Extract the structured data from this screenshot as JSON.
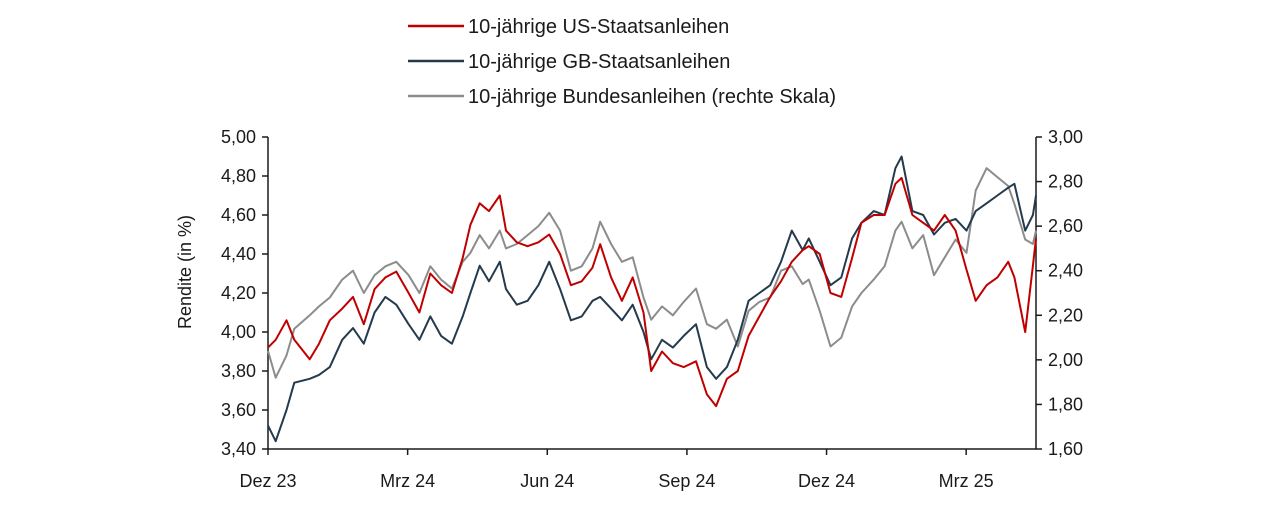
{
  "chart_data": {
    "type": "line",
    "title": "",
    "xlabel": "",
    "ylabel": "Rendite (in %)",
    "ylim": [
      3.4,
      5.0
    ],
    "y2lim": [
      1.6,
      3.0
    ],
    "yticks": [
      "5,00",
      "4,80",
      "4,60",
      "4,40",
      "4,20",
      "4,00",
      "3,80",
      "3,60",
      "3,40"
    ],
    "y2ticks": [
      "3,00",
      "2,80",
      "2,60",
      "2,40",
      "2,20",
      "2,00",
      "1,80",
      "1,60"
    ],
    "xticks": [
      "Dez 23",
      "Mrz 24",
      "Jun 24",
      "Sep 24",
      "Dez 24",
      "Mrz 25"
    ],
    "x_range": [
      "2023-12-01",
      "2025-04-11"
    ],
    "legend_position": "top-center",
    "series": [
      {
        "name": "10-jährige US-Staatsanleihen",
        "color": "#c00000",
        "axis": "left",
        "points": [
          [
            "2023-12-01",
            3.92
          ],
          [
            "2023-12-06",
            3.96
          ],
          [
            "2023-12-13",
            4.06
          ],
          [
            "2023-12-18",
            3.96
          ],
          [
            "2023-12-28",
            3.86
          ],
          [
            "2024-01-03",
            3.94
          ],
          [
            "2024-01-10",
            4.06
          ],
          [
            "2024-01-18",
            4.12
          ],
          [
            "2024-01-25",
            4.18
          ],
          [
            "2024-02-01",
            4.04
          ],
          [
            "2024-02-08",
            4.22
          ],
          [
            "2024-02-15",
            4.28
          ],
          [
            "2024-02-22",
            4.31
          ],
          [
            "2024-03-01",
            4.2
          ],
          [
            "2024-03-08",
            4.1
          ],
          [
            "2024-03-15",
            4.3
          ],
          [
            "2024-03-22",
            4.24
          ],
          [
            "2024-03-29",
            4.2
          ],
          [
            "2024-04-05",
            4.38
          ],
          [
            "2024-04-10",
            4.55
          ],
          [
            "2024-04-16",
            4.66
          ],
          [
            "2024-04-22",
            4.62
          ],
          [
            "2024-04-29",
            4.7
          ],
          [
            "2024-05-03",
            4.52
          ],
          [
            "2024-05-10",
            4.46
          ],
          [
            "2024-05-17",
            4.44
          ],
          [
            "2024-05-24",
            4.46
          ],
          [
            "2024-05-31",
            4.5
          ],
          [
            "2024-06-07",
            4.4
          ],
          [
            "2024-06-14",
            4.24
          ],
          [
            "2024-06-21",
            4.26
          ],
          [
            "2024-06-28",
            4.33
          ],
          [
            "2024-07-03",
            4.45
          ],
          [
            "2024-07-10",
            4.28
          ],
          [
            "2024-07-17",
            4.16
          ],
          [
            "2024-07-24",
            4.28
          ],
          [
            "2024-07-31",
            4.1
          ],
          [
            "2024-08-05",
            3.8
          ],
          [
            "2024-08-12",
            3.9
          ],
          [
            "2024-08-19",
            3.84
          ],
          [
            "2024-08-26",
            3.82
          ],
          [
            "2024-09-03",
            3.85
          ],
          [
            "2024-09-10",
            3.68
          ],
          [
            "2024-09-16",
            3.62
          ],
          [
            "2024-09-23",
            3.76
          ],
          [
            "2024-09-30",
            3.8
          ],
          [
            "2024-10-07",
            3.98
          ],
          [
            "2024-10-14",
            4.08
          ],
          [
            "2024-10-21",
            4.18
          ],
          [
            "2024-10-28",
            4.26
          ],
          [
            "2024-11-04",
            4.36
          ],
          [
            "2024-11-11",
            4.42
          ],
          [
            "2024-11-15",
            4.44
          ],
          [
            "2024-11-22",
            4.4
          ],
          [
            "2024-11-29",
            4.2
          ],
          [
            "2024-12-06",
            4.18
          ],
          [
            "2024-12-13",
            4.38
          ],
          [
            "2024-12-19",
            4.56
          ],
          [
            "2024-12-27",
            4.6
          ],
          [
            "2025-01-03",
            4.6
          ],
          [
            "2025-01-10",
            4.76
          ],
          [
            "2025-01-14",
            4.79
          ],
          [
            "2025-01-21",
            4.6
          ],
          [
            "2025-01-28",
            4.56
          ],
          [
            "2025-02-04",
            4.52
          ],
          [
            "2025-02-11",
            4.6
          ],
          [
            "2025-02-18",
            4.52
          ],
          [
            "2025-02-25",
            4.32
          ],
          [
            "2025-03-03",
            4.16
          ],
          [
            "2025-03-10",
            4.24
          ],
          [
            "2025-03-17",
            4.28
          ],
          [
            "2025-03-24",
            4.36
          ],
          [
            "2025-03-28",
            4.28
          ],
          [
            "2025-04-04",
            4.0
          ],
          [
            "2025-04-09",
            4.34
          ],
          [
            "2025-04-11",
            4.48
          ]
        ]
      },
      {
        "name": "10-jährige GB-Staatsanleihen",
        "color": "#243a4d",
        "axis": "left",
        "points": [
          [
            "2023-12-01",
            3.52
          ],
          [
            "2023-12-06",
            3.44
          ],
          [
            "2023-12-13",
            3.6
          ],
          [
            "2023-12-18",
            3.74
          ],
          [
            "2023-12-28",
            3.76
          ],
          [
            "2024-01-03",
            3.78
          ],
          [
            "2024-01-10",
            3.82
          ],
          [
            "2024-01-18",
            3.96
          ],
          [
            "2024-01-25",
            4.02
          ],
          [
            "2024-02-01",
            3.94
          ],
          [
            "2024-02-08",
            4.1
          ],
          [
            "2024-02-15",
            4.18
          ],
          [
            "2024-02-22",
            4.14
          ],
          [
            "2024-03-01",
            4.04
          ],
          [
            "2024-03-08",
            3.96
          ],
          [
            "2024-03-15",
            4.08
          ],
          [
            "2024-03-22",
            3.98
          ],
          [
            "2024-03-29",
            3.94
          ],
          [
            "2024-04-05",
            4.08
          ],
          [
            "2024-04-10",
            4.2
          ],
          [
            "2024-04-16",
            4.34
          ],
          [
            "2024-04-22",
            4.26
          ],
          [
            "2024-04-29",
            4.36
          ],
          [
            "2024-05-03",
            4.22
          ],
          [
            "2024-05-10",
            4.14
          ],
          [
            "2024-05-17",
            4.16
          ],
          [
            "2024-05-24",
            4.24
          ],
          [
            "2024-05-31",
            4.36
          ],
          [
            "2024-06-07",
            4.22
          ],
          [
            "2024-06-14",
            4.06
          ],
          [
            "2024-06-21",
            4.08
          ],
          [
            "2024-06-28",
            4.16
          ],
          [
            "2024-07-03",
            4.18
          ],
          [
            "2024-07-10",
            4.12
          ],
          [
            "2024-07-17",
            4.06
          ],
          [
            "2024-07-24",
            4.14
          ],
          [
            "2024-07-31",
            4.0
          ],
          [
            "2024-08-05",
            3.86
          ],
          [
            "2024-08-12",
            3.96
          ],
          [
            "2024-08-19",
            3.92
          ],
          [
            "2024-08-26",
            3.98
          ],
          [
            "2024-09-03",
            4.04
          ],
          [
            "2024-09-10",
            3.82
          ],
          [
            "2024-09-16",
            3.76
          ],
          [
            "2024-09-23",
            3.82
          ],
          [
            "2024-09-30",
            3.96
          ],
          [
            "2024-10-07",
            4.16
          ],
          [
            "2024-10-14",
            4.2
          ],
          [
            "2024-10-21",
            4.24
          ],
          [
            "2024-10-28",
            4.36
          ],
          [
            "2024-11-04",
            4.52
          ],
          [
            "2024-11-11",
            4.42
          ],
          [
            "2024-11-15",
            4.48
          ],
          [
            "2024-11-22",
            4.36
          ],
          [
            "2024-11-29",
            4.24
          ],
          [
            "2024-12-06",
            4.28
          ],
          [
            "2024-12-13",
            4.48
          ],
          [
            "2024-12-19",
            4.56
          ],
          [
            "2024-12-27",
            4.62
          ],
          [
            "2025-01-03",
            4.6
          ],
          [
            "2025-01-10",
            4.84
          ],
          [
            "2025-01-14",
            4.9
          ],
          [
            "2025-01-21",
            4.62
          ],
          [
            "2025-01-28",
            4.6
          ],
          [
            "2025-02-04",
            4.5
          ],
          [
            "2025-02-11",
            4.56
          ],
          [
            "2025-02-18",
            4.58
          ],
          [
            "2025-02-25",
            4.52
          ],
          [
            "2025-03-03",
            4.62
          ],
          [
            "2025-03-10",
            4.66
          ],
          [
            "2025-03-17",
            4.7
          ],
          [
            "2025-03-24",
            4.74
          ],
          [
            "2025-03-28",
            4.76
          ],
          [
            "2025-04-04",
            4.52
          ],
          [
            "2025-04-09",
            4.6
          ],
          [
            "2025-04-11",
            4.7
          ]
        ]
      },
      {
        "name": "10-jährige Bundesanleihen (rechte Skala)",
        "color": "#8c8c8c",
        "axis": "right",
        "points": [
          [
            "2023-12-01",
            2.04
          ],
          [
            "2023-12-06",
            1.92
          ],
          [
            "2023-12-13",
            2.02
          ],
          [
            "2023-12-18",
            2.14
          ],
          [
            "2023-12-28",
            2.2
          ],
          [
            "2024-01-03",
            2.24
          ],
          [
            "2024-01-10",
            2.28
          ],
          [
            "2024-01-18",
            2.36
          ],
          [
            "2024-01-25",
            2.4
          ],
          [
            "2024-02-01",
            2.3
          ],
          [
            "2024-02-08",
            2.38
          ],
          [
            "2024-02-15",
            2.42
          ],
          [
            "2024-02-22",
            2.44
          ],
          [
            "2024-03-01",
            2.38
          ],
          [
            "2024-03-08",
            2.3
          ],
          [
            "2024-03-15",
            2.42
          ],
          [
            "2024-03-22",
            2.36
          ],
          [
            "2024-03-29",
            2.32
          ],
          [
            "2024-04-05",
            2.44
          ],
          [
            "2024-04-10",
            2.48
          ],
          [
            "2024-04-16",
            2.56
          ],
          [
            "2024-04-22",
            2.5
          ],
          [
            "2024-04-29",
            2.58
          ],
          [
            "2024-05-03",
            2.5
          ],
          [
            "2024-05-10",
            2.52
          ],
          [
            "2024-05-17",
            2.56
          ],
          [
            "2024-05-24",
            2.6
          ],
          [
            "2024-05-31",
            2.66
          ],
          [
            "2024-06-07",
            2.58
          ],
          [
            "2024-06-14",
            2.4
          ],
          [
            "2024-06-21",
            2.42
          ],
          [
            "2024-06-28",
            2.5
          ],
          [
            "2024-07-03",
            2.62
          ],
          [
            "2024-07-10",
            2.52
          ],
          [
            "2024-07-17",
            2.44
          ],
          [
            "2024-07-24",
            2.46
          ],
          [
            "2024-07-31",
            2.28
          ],
          [
            "2024-08-05",
            2.18
          ],
          [
            "2024-08-12",
            2.24
          ],
          [
            "2024-08-19",
            2.2
          ],
          [
            "2024-08-26",
            2.26
          ],
          [
            "2024-09-03",
            2.32
          ],
          [
            "2024-09-10",
            2.16
          ],
          [
            "2024-09-16",
            2.14
          ],
          [
            "2024-09-23",
            2.18
          ],
          [
            "2024-09-30",
            2.06
          ],
          [
            "2024-10-07",
            2.22
          ],
          [
            "2024-10-14",
            2.26
          ],
          [
            "2024-10-21",
            2.28
          ],
          [
            "2024-10-28",
            2.4
          ],
          [
            "2024-11-04",
            2.42
          ],
          [
            "2024-11-11",
            2.34
          ],
          [
            "2024-11-15",
            2.36
          ],
          [
            "2024-11-22",
            2.22
          ],
          [
            "2024-11-29",
            2.06
          ],
          [
            "2024-12-06",
            2.1
          ],
          [
            "2024-12-13",
            2.24
          ],
          [
            "2024-12-19",
            2.3
          ],
          [
            "2024-12-27",
            2.36
          ],
          [
            "2025-01-03",
            2.42
          ],
          [
            "2025-01-10",
            2.58
          ],
          [
            "2025-01-14",
            2.62
          ],
          [
            "2025-01-21",
            2.5
          ],
          [
            "2025-01-28",
            2.56
          ],
          [
            "2025-02-04",
            2.38
          ],
          [
            "2025-02-11",
            2.46
          ],
          [
            "2025-02-18",
            2.54
          ],
          [
            "2025-02-25",
            2.48
          ],
          [
            "2025-03-03",
            2.76
          ],
          [
            "2025-03-10",
            2.86
          ],
          [
            "2025-03-17",
            2.82
          ],
          [
            "2025-03-24",
            2.78
          ],
          [
            "2025-03-28",
            2.7
          ],
          [
            "2025-04-04",
            2.54
          ],
          [
            "2025-04-09",
            2.52
          ],
          [
            "2025-04-11",
            2.58
          ]
        ]
      }
    ]
  }
}
